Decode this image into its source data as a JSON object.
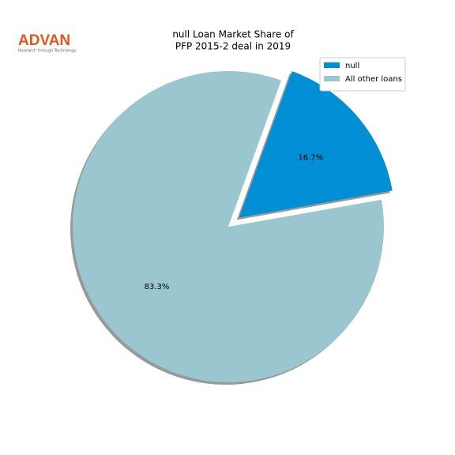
{
  "logo": {
    "name": "ADVAN",
    "tagline": "Research through Technology"
  },
  "chart_data": {
    "type": "pie",
    "title": [
      "null Loan Market Share of",
      "PFP 2015-2 deal in 2019"
    ],
    "categories": [
      "null",
      "All other loans"
    ],
    "values": [
      16.7,
      83.3
    ],
    "value_labels": [
      "16.7%",
      "83.3%"
    ],
    "colors": [
      "#008fd5",
      "#99c6cf"
    ],
    "legend": "upper right"
  }
}
